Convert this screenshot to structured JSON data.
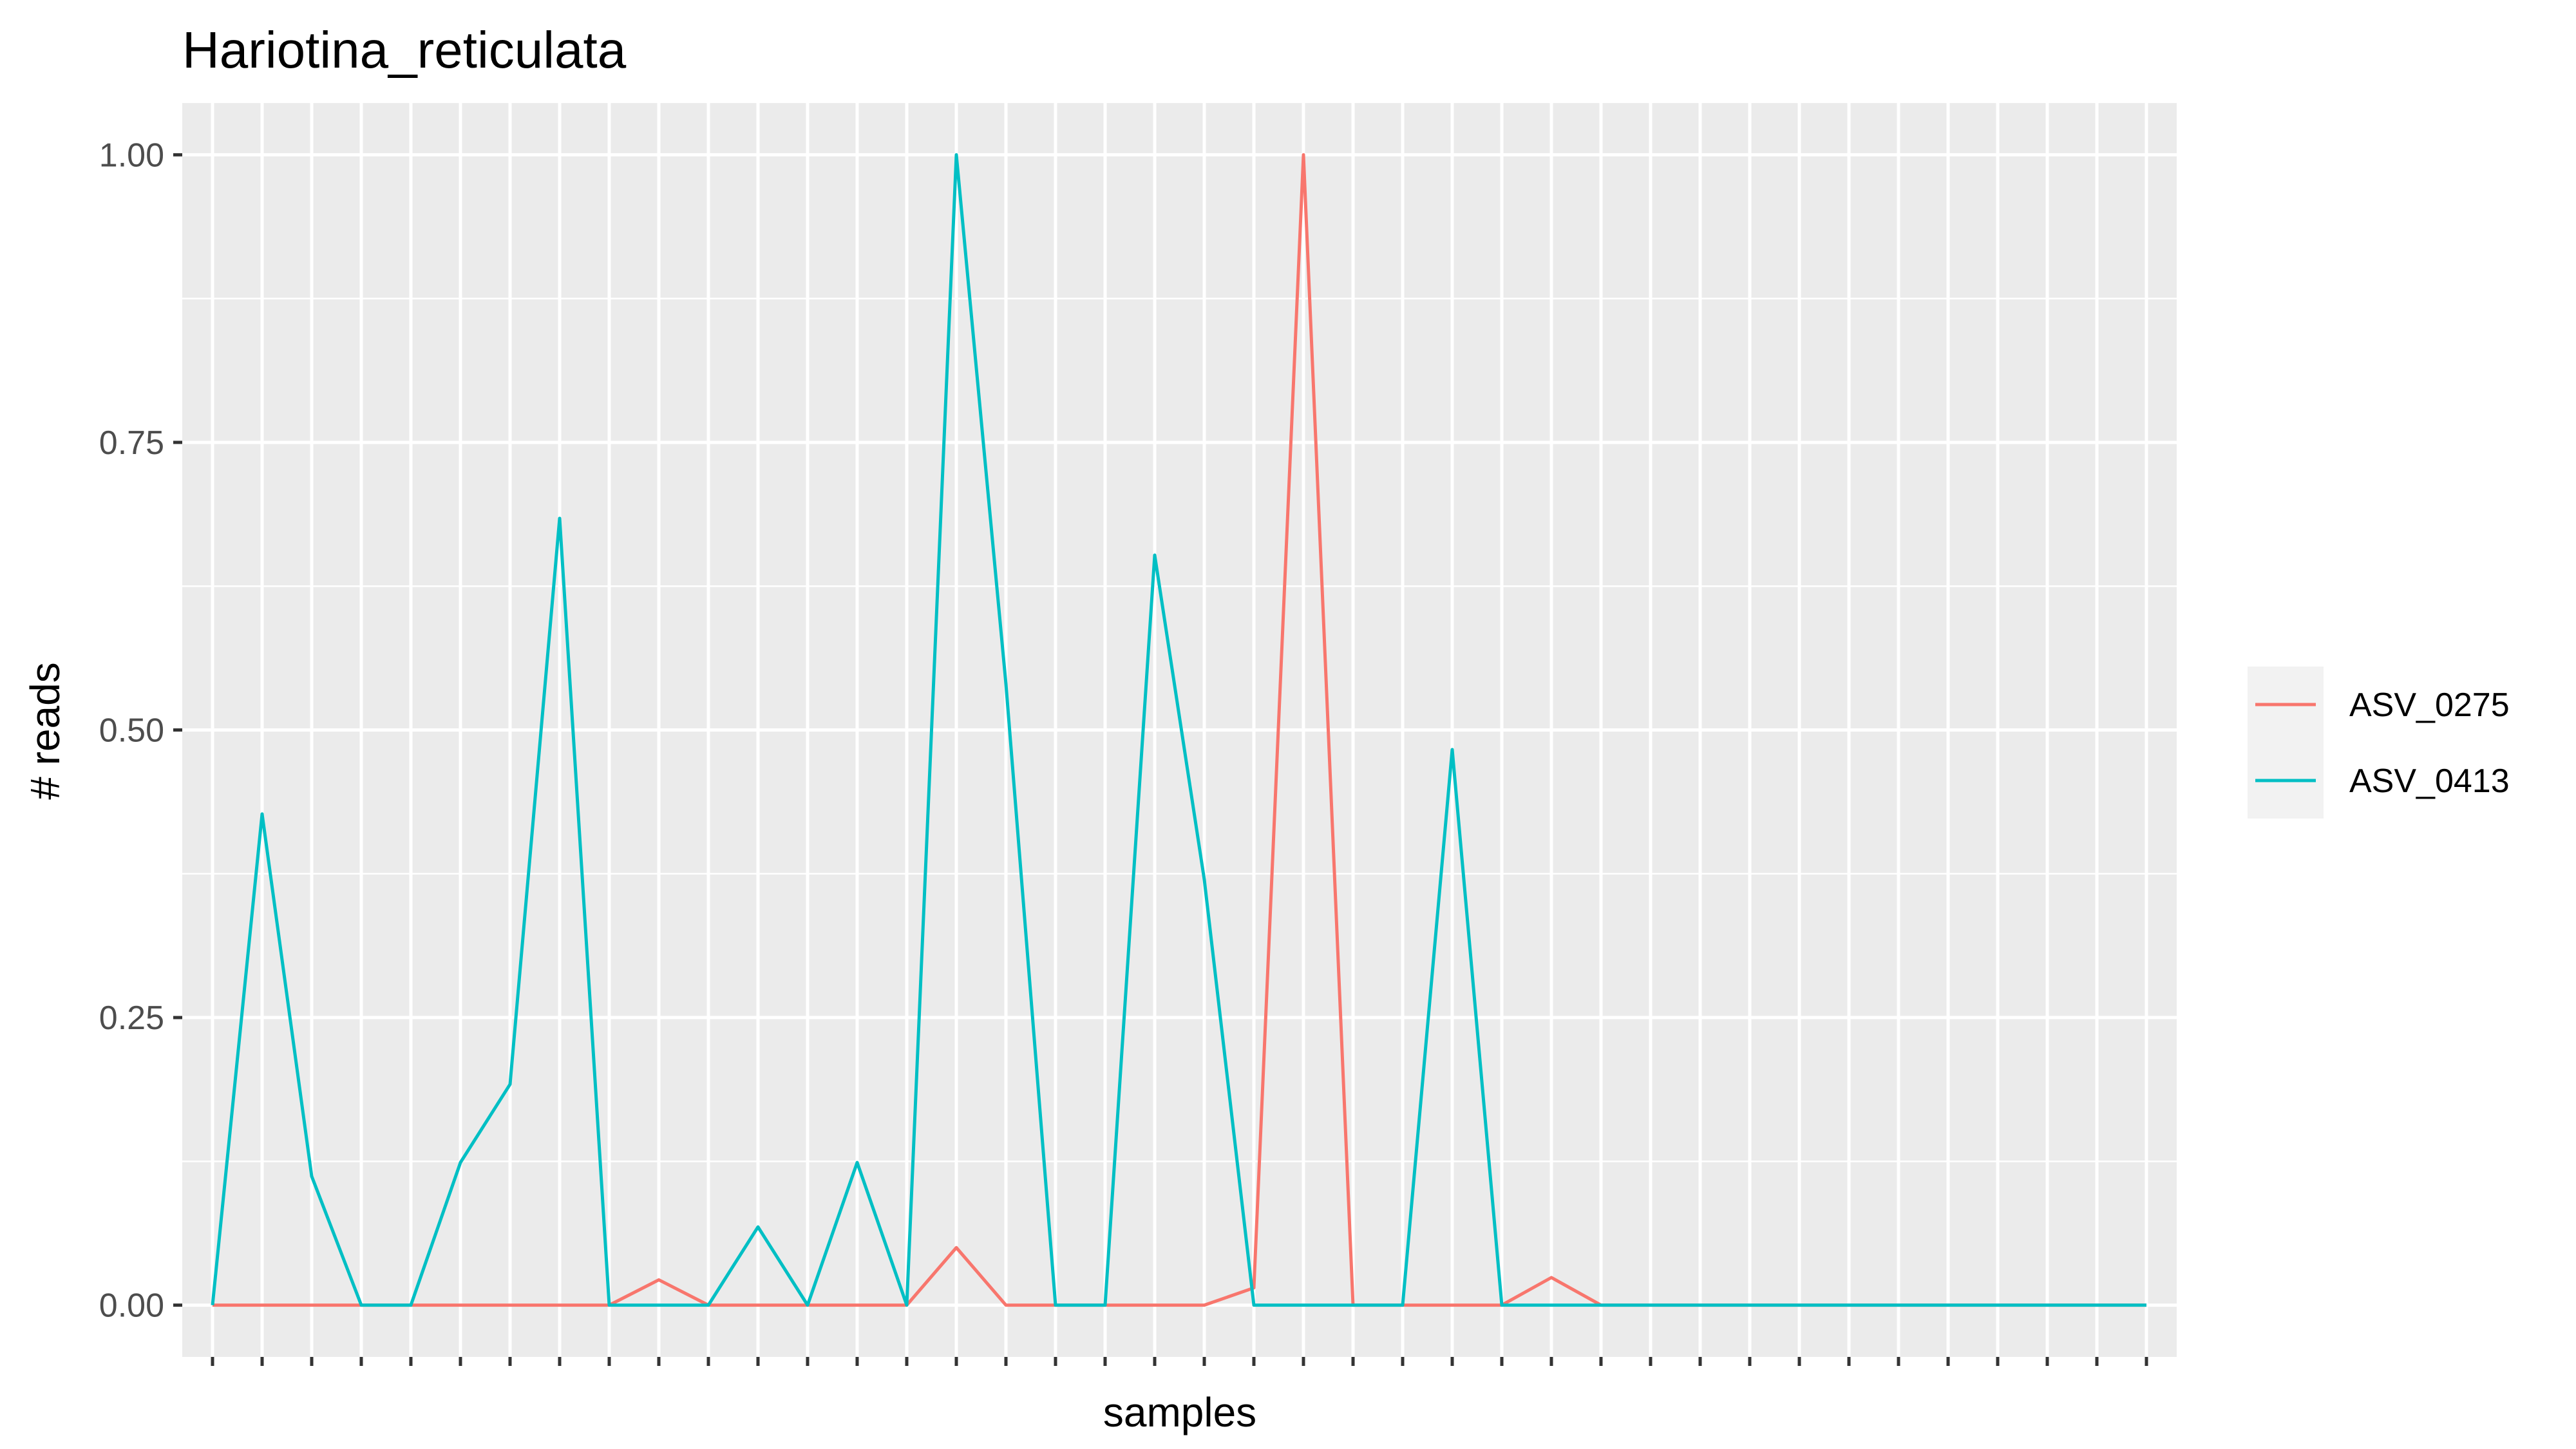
{
  "chart_data": {
    "type": "line",
    "title": "Hariotina_reticulata",
    "xlabel": "samples",
    "ylabel": "# reads",
    "ylim": [
      -0.045,
      1.045
    ],
    "yticks": [
      0.0,
      0.25,
      0.5,
      0.75,
      1.0
    ],
    "ytick_labels": [
      "0.00",
      "0.25",
      "0.50",
      "0.75",
      "1.00"
    ],
    "x_tick_labels_shown": false,
    "n_samples": 40,
    "grid": true,
    "legend_position": "right",
    "series": [
      {
        "name": "ASV_0275",
        "color": "#F8766D",
        "values": [
          0,
          0,
          0,
          0,
          0,
          0,
          0,
          0,
          0,
          0.022,
          0,
          0,
          0,
          0,
          0,
          0.05,
          0,
          0,
          0,
          0,
          0,
          0.015,
          1.0,
          0,
          0,
          0,
          0,
          0.024,
          0,
          0,
          0,
          0,
          0,
          0,
          0,
          0,
          0,
          0,
          0,
          0
        ]
      },
      {
        "name": "ASV_0413",
        "color": "#00BFC4",
        "values": [
          0,
          0.427,
          0.112,
          0,
          0,
          0.124,
          0.192,
          0.684,
          0,
          0,
          0,
          0.068,
          0,
          0.124,
          0,
          1.0,
          0.54,
          0,
          0,
          0.652,
          0.37,
          0,
          0,
          0,
          0,
          0.483,
          0,
          0,
          0,
          0,
          0,
          0,
          0,
          0,
          0,
          0,
          0,
          0,
          0,
          0
        ]
      }
    ]
  }
}
